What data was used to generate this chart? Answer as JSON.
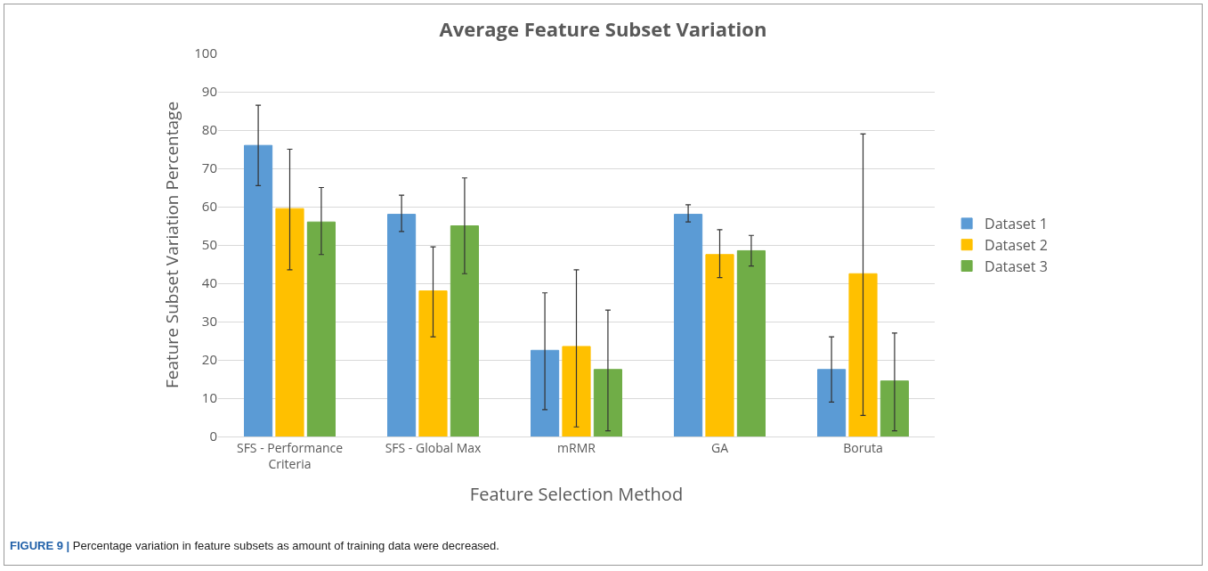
{
  "chart_data": {
    "type": "bar",
    "title": "Average Feature Subset Variation",
    "xlabel": "Feature Selection Method",
    "ylabel": "Feature Subset Variation Percentage",
    "categories": [
      "SFS - Performance Criteria",
      "SFS - Global Max",
      "mRMR",
      "GA",
      "Boruta"
    ],
    "series": [
      {
        "name": "Dataset 1",
        "color": "#5b9bd5",
        "values": [
          76,
          58,
          22.5,
          58,
          17.5
        ],
        "errors": [
          [
            65.5,
            86.5
          ],
          [
            53.5,
            63
          ],
          [
            7,
            37.5
          ],
          [
            56,
            60.5
          ],
          [
            9,
            26
          ]
        ]
      },
      {
        "name": "Dataset 2",
        "color": "#ffc000",
        "values": [
          59.5,
          38,
          23.5,
          47.5,
          42.5
        ],
        "errors": [
          [
            43.5,
            75
          ],
          [
            26,
            49.5
          ],
          [
            2.5,
            43.5
          ],
          [
            41.5,
            54
          ],
          [
            5.5,
            79
          ]
        ]
      },
      {
        "name": "Dataset 3",
        "color": "#70ad47",
        "values": [
          56,
          55,
          17.5,
          48.5,
          14.5
        ],
        "errors": [
          [
            47.5,
            65
          ],
          [
            42.5,
            67.5
          ],
          [
            1.5,
            33
          ],
          [
            44.5,
            52.5
          ],
          [
            1.5,
            27
          ]
        ]
      }
    ],
    "ylim": [
      0,
      100
    ],
    "yticks": [
      0,
      10,
      20,
      30,
      40,
      50,
      60,
      70,
      80,
      90,
      100
    ],
    "grid": "y",
    "legend": "right",
    "annotations": [
      "FIGURE 9 | Percentage variation in feature subsets as amount of training data were decreased."
    ]
  }
}
